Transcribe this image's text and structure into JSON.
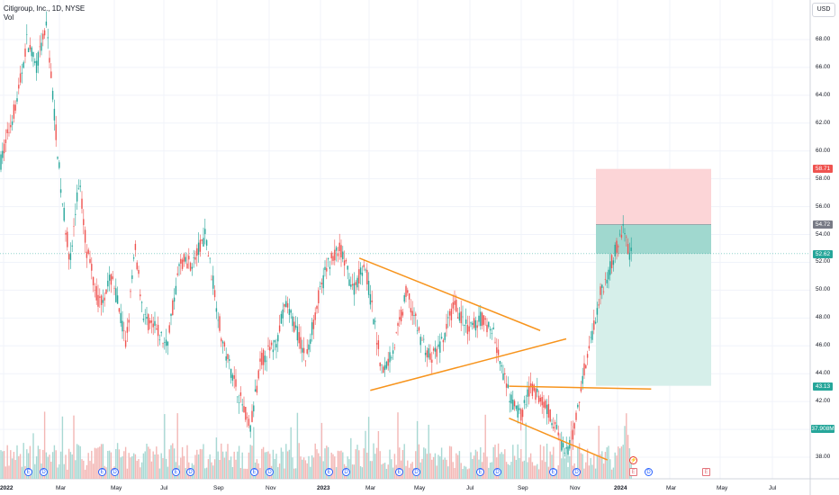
{
  "header": {
    "title": "Citigroup, Inc., 1D, NYSE",
    "sub": "Vol"
  },
  "currency_button": "USD",
  "colors": {
    "up": "#26a69a",
    "down": "#ef5350",
    "trendline": "#f7941d",
    "target_zone": "#d6efea",
    "stop_zone": "#fcd5d7",
    "entry_zone": "#8ed0c5"
  },
  "price_axis": {
    "ticks": [
      "68.00",
      "66.00",
      "64.00",
      "62.00",
      "60.00",
      "58.00",
      "56.00",
      "54.00",
      "52.00",
      "50.00",
      "48.00",
      "46.00",
      "44.00",
      "42.00",
      "40.00",
      "38.00"
    ]
  },
  "price_labels": {
    "stop": "58.71",
    "entry": "54.72",
    "current": "52.62",
    "target": "43.13",
    "volume": "37.908M"
  },
  "time_axis": {
    "ticks": [
      {
        "label": "2022",
        "bold": true
      },
      {
        "label": "Mar",
        "bold": false
      },
      {
        "label": "May",
        "bold": false
      },
      {
        "label": "Jul",
        "bold": false
      },
      {
        "label": "Sep",
        "bold": false
      },
      {
        "label": "Nov",
        "bold": false
      },
      {
        "label": "2023",
        "bold": true
      },
      {
        "label": "Mar",
        "bold": false
      },
      {
        "label": "May",
        "bold": false
      },
      {
        "label": "Jul",
        "bold": false
      },
      {
        "label": "Sep",
        "bold": false
      },
      {
        "label": "Nov",
        "bold": false
      },
      {
        "label": "2024",
        "bold": true
      },
      {
        "label": "Mar",
        "bold": false
      },
      {
        "label": "May",
        "bold": false
      },
      {
        "label": "Jul",
        "bold": false
      }
    ]
  },
  "events": [
    {
      "t": "E",
      "kind": "earnings"
    },
    {
      "t": "D",
      "kind": "dividend"
    },
    {
      "t": "E",
      "kind": "earnings"
    },
    {
      "t": "D",
      "kind": "dividend"
    },
    {
      "t": "E",
      "kind": "earnings"
    },
    {
      "t": "D",
      "kind": "dividend"
    },
    {
      "t": "E",
      "kind": "earnings"
    },
    {
      "t": "D",
      "kind": "dividend"
    },
    {
      "t": "E",
      "kind": "earnings"
    },
    {
      "t": "D",
      "kind": "dividend"
    },
    {
      "t": "E",
      "kind": "earnings"
    },
    {
      "t": "D",
      "kind": "dividend"
    },
    {
      "t": "E",
      "kind": "earnings"
    },
    {
      "t": "D",
      "kind": "dividend"
    },
    {
      "t": "E",
      "kind": "earnings"
    },
    {
      "t": "D",
      "kind": "dividend"
    },
    {
      "t": "⚡",
      "kind": "split"
    },
    {
      "t": "E",
      "kind": "future-earnings"
    },
    {
      "t": "D",
      "kind": "future-dividend"
    },
    {
      "t": "E",
      "kind": "future-earnings"
    }
  ],
  "chart_data": {
    "type": "candlestick",
    "symbol": "Citigroup, Inc.",
    "interval": "1D",
    "exchange": "NYSE",
    "ylim": [
      37,
      69.5
    ],
    "grid": true,
    "trendlines": [
      {
        "from": [
          "2023-02-28",
          52.3
        ],
        "to": [
          "2023-10-01",
          47.1
        ]
      },
      {
        "from": [
          "2023-03-13",
          42.8
        ],
        "to": [
          "2023-11-01",
          46.5
        ]
      },
      {
        "from": [
          "2023-08-25",
          43.1
        ],
        "to": [
          "2024-02-10",
          42.9
        ]
      },
      {
        "from": [
          "2023-08-25",
          40.8
        ],
        "to": [
          "2023-12-20",
          37.8
        ]
      }
    ],
    "position": {
      "type": "short",
      "entry": 54.72,
      "stop": 58.71,
      "target": 43.13,
      "current": 52.62
    }
  }
}
